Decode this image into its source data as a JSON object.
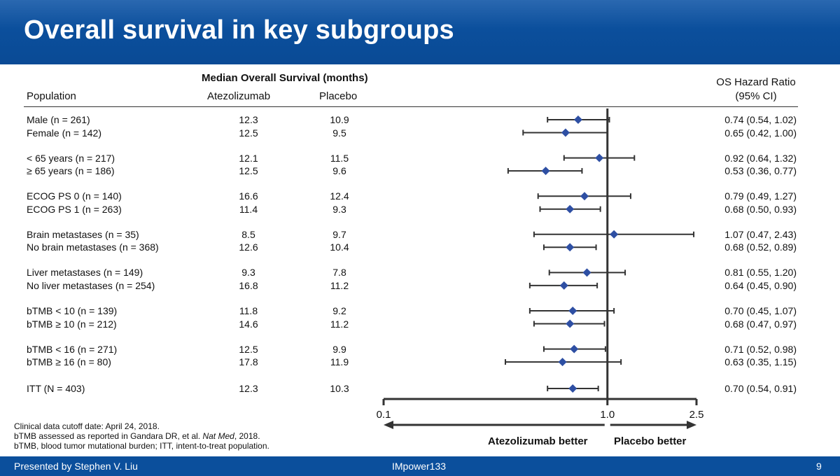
{
  "header": {
    "title": "Overall survival in key subgroups"
  },
  "table": {
    "median_os_header": "Median Overall Survival (months)",
    "population_header": "Population",
    "atezo_header": "Atezolizumab",
    "placebo_header": "Placebo",
    "hr_header_line1": "OS Hazard Ratio",
    "hr_header_line2": "(95% CI)"
  },
  "chart_data": {
    "type": "forest",
    "title": "Overall survival in key subgroups",
    "xscale": "log",
    "xlim": [
      0.1,
      2.5
    ],
    "reference_line": 1.0,
    "x_ticks": [
      "0.1",
      "1.0",
      "2.5"
    ],
    "left_label": "Atezolizumab better",
    "right_label": "Placebo better",
    "marker_color": "#2e4fa3",
    "line_color": "#333333",
    "rows": [
      {
        "population": "Male (n = 261)",
        "atezo": "12.3",
        "placebo": "10.9",
        "hr": 0.74,
        "lo": 0.54,
        "hi": 1.02,
        "hr_text": "0.74 (0.54, 1.02)"
      },
      {
        "population": "Female (n = 142)",
        "atezo": "12.5",
        "placebo": "9.5",
        "hr": 0.65,
        "lo": 0.42,
        "hi": 1.0,
        "hr_text": "0.65 (0.42, 1.00)"
      },
      {
        "population": "< 65 years (n = 217)",
        "atezo": "12.1",
        "placebo": "11.5",
        "hr": 0.92,
        "lo": 0.64,
        "hi": 1.32,
        "hr_text": "0.92 (0.64, 1.32)"
      },
      {
        "population": "≥ 65 years (n = 186)",
        "atezo": "12.5",
        "placebo": "9.6",
        "hr": 0.53,
        "lo": 0.36,
        "hi": 0.77,
        "hr_text": "0.53 (0.36, 0.77)"
      },
      {
        "population": "ECOG PS 0 (n = 140)",
        "atezo": "16.6",
        "placebo": "12.4",
        "hr": 0.79,
        "lo": 0.49,
        "hi": 1.27,
        "hr_text": "0.79 (0.49, 1.27)"
      },
      {
        "population": "ECOG PS 1 (n = 263)",
        "atezo": "11.4",
        "placebo": "9.3",
        "hr": 0.68,
        "lo": 0.5,
        "hi": 0.93,
        "hr_text": "0.68 (0.50, 0.93)"
      },
      {
        "population": "Brain metastases (n = 35)",
        "atezo": "8.5",
        "placebo": "9.7",
        "hr": 1.07,
        "lo": 0.47,
        "hi": 2.43,
        "hr_text": "1.07 (0.47, 2.43)"
      },
      {
        "population": "No brain metastases (n = 368)",
        "atezo": "12.6",
        "placebo": "10.4",
        "hr": 0.68,
        "lo": 0.52,
        "hi": 0.89,
        "hr_text": "0.68 (0.52, 0.89)"
      },
      {
        "population": "Liver metastases (n = 149)",
        "atezo": "9.3",
        "placebo": "7.8",
        "hr": 0.81,
        "lo": 0.55,
        "hi": 1.2,
        "hr_text": "0.81 (0.55, 1.20)"
      },
      {
        "population": "No liver metastases (n = 254)",
        "atezo": "16.8",
        "placebo": "11.2",
        "hr": 0.64,
        "lo": 0.45,
        "hi": 0.9,
        "hr_text": "0.64 (0.45, 0.90)"
      },
      {
        "population": "bTMB < 10 (n = 139)",
        "atezo": "11.8",
        "placebo": "9.2",
        "hr": 0.7,
        "lo": 0.45,
        "hi": 1.07,
        "hr_text": "0.70 (0.45, 1.07)"
      },
      {
        "population": "bTMB ≥ 10 (n = 212)",
        "atezo": "14.6",
        "placebo": "11.2",
        "hr": 0.68,
        "lo": 0.47,
        "hi": 0.97,
        "hr_text": "0.68 (0.47, 0.97)"
      },
      {
        "population": "bTMB < 16 (n = 271)",
        "atezo": "12.5",
        "placebo": "9.9",
        "hr": 0.71,
        "lo": 0.52,
        "hi": 0.98,
        "hr_text": "0.71 (0.52, 0.98)"
      },
      {
        "population": "bTMB ≥ 16 (n = 80)",
        "atezo": "17.8",
        "placebo": "11.9",
        "hr": 0.63,
        "lo": 0.35,
        "hi": 1.15,
        "hr_text": "0.63 (0.35, 1.15)"
      },
      {
        "population": "ITT (N = 403)",
        "atezo": "12.3",
        "placebo": "10.3",
        "hr": 0.7,
        "lo": 0.54,
        "hi": 0.91,
        "hr_text": "0.70 (0.54, 0.91)"
      }
    ]
  },
  "footnotes": {
    "line1": "Clinical data cutoff date: April 24, 2018.",
    "line2_prefix": "bTMB assessed as reported in Gandara DR, et al. ",
    "line2_journal": "Nat Med",
    "line2_suffix": ", 2018.",
    "line3": "bTMB, blood tumor mutational burden; ITT, intent-to-treat population."
  },
  "footer": {
    "presenter": "Presented by Stephen V. Liu",
    "study": "IMpower133",
    "page": "9"
  }
}
